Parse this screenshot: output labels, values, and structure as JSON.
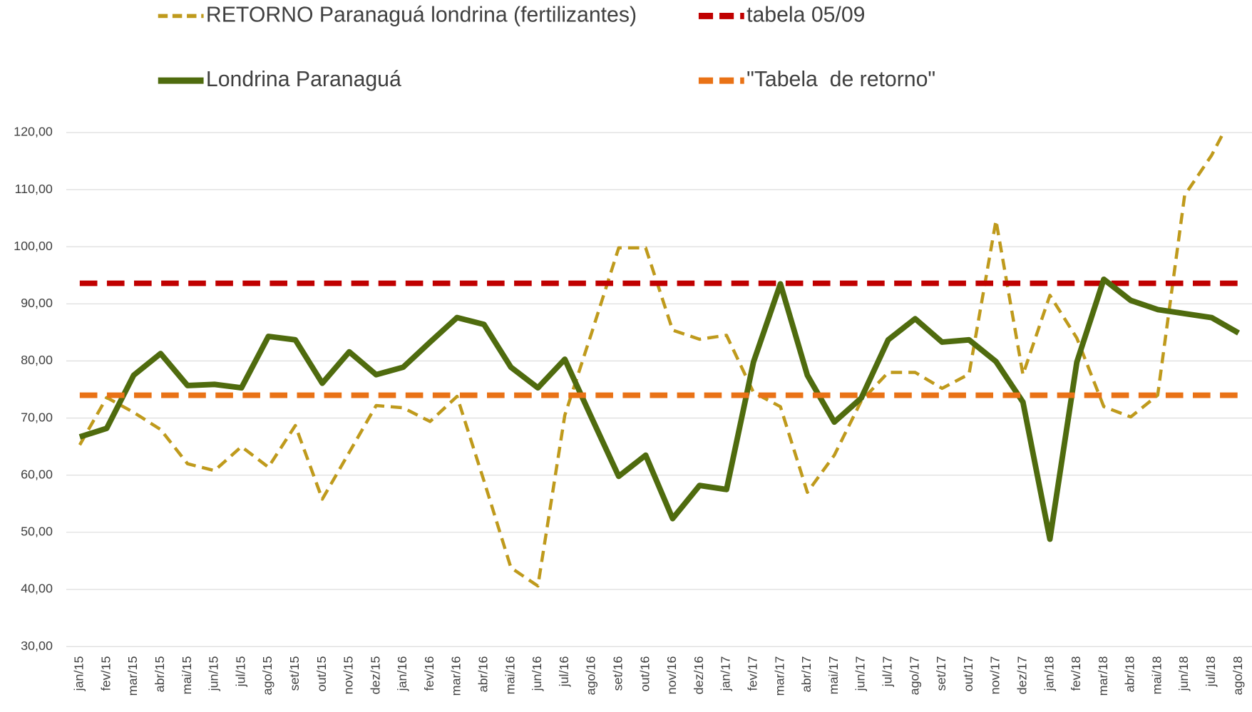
{
  "chart_data": {
    "type": "line",
    "categories": [
      "jan/15",
      "fev/15",
      "mar/15",
      "abr/15",
      "mai/15",
      "jun/15",
      "jul/15",
      "ago/15",
      "set/15",
      "out/15",
      "nov/15",
      "dez/15",
      "jan/16",
      "fev/16",
      "mar/16",
      "abr/16",
      "mai/16",
      "jun/16",
      "jul/16",
      "ago/16",
      "set/16",
      "out/16",
      "nov/16",
      "dez/16",
      "jan/17",
      "fev/17",
      "mar/17",
      "abr/17",
      "mai/17",
      "jun/17",
      "jul/17",
      "ago/17",
      "set/17",
      "out/17",
      "nov/17",
      "dez/17",
      "jan/18",
      "fev/18",
      "mar/18",
      "abr/18",
      "mai/18",
      "jun/18",
      "jul/18",
      "ago/18"
    ],
    "series": [
      {
        "name": "RETORNO Paranaguá londrina (fertilizantes)",
        "color": "#bf9a1c",
        "style": "dashed",
        "values": [
          65.3,
          73.6,
          71,
          68,
          62,
          60.8,
          65,
          61.4,
          68.7,
          55.8,
          64,
          72.2,
          71.8,
          69.4,
          73.8,
          59,
          43.8,
          40.6,
          70.5,
          85,
          99.8,
          99.8,
          85.4,
          83.8,
          84.5,
          74.5,
          72,
          57,
          63.5,
          73,
          78,
          78,
          75.2,
          77.7,
          104.6,
          77.6,
          91.5,
          84,
          72,
          70.2,
          74,
          109,
          116,
          125
        ]
      },
      {
        "name": "tabela 05/09",
        "color": "#c00000",
        "style": "dashed",
        "values": [
          93.6,
          93.6,
          93.6,
          93.6,
          93.6,
          93.6,
          93.6,
          93.6,
          93.6,
          93.6,
          93.6,
          93.6,
          93.6,
          93.6,
          93.6,
          93.6,
          93.6,
          93.6,
          93.6,
          93.6,
          93.6,
          93.6,
          93.6,
          93.6,
          93.6,
          93.6,
          93.6,
          93.6,
          93.6,
          93.6,
          93.6,
          93.6,
          93.6,
          93.6,
          93.6,
          93.6,
          93.6,
          93.6,
          93.6,
          93.6,
          93.6,
          93.6,
          93.6,
          93.6
        ]
      },
      {
        "name": "Londrina Paranaguá",
        "color": "#4f6b0e",
        "style": "solid",
        "values": [
          66.7,
          68.2,
          77.5,
          81.3,
          75.7,
          75.9,
          75.3,
          84.3,
          83.7,
          76.1,
          81.6,
          77.6,
          78.9,
          83.3,
          87.6,
          86.4,
          78.9,
          75.3,
          80.3,
          70,
          59.8,
          63.5,
          52.4,
          58.2,
          57.5,
          79.8,
          93.5,
          77.5,
          69.3,
          73.5,
          83.7,
          87.4,
          83.3,
          83.7,
          79.9,
          72.8,
          48.8,
          79.8,
          94.3,
          90.6,
          89,
          88.3,
          87.6,
          84.9
        ]
      },
      {
        "name": "\"Tabela  de retorno\"",
        "color": "#e97216",
        "style": "dashed",
        "values": [
          74,
          74,
          74,
          74,
          74,
          74,
          74,
          74,
          74,
          74,
          74,
          74,
          74,
          74,
          74,
          74,
          74,
          74,
          74,
          74,
          74,
          74,
          74,
          74,
          74,
          74,
          74,
          74,
          74,
          74,
          74,
          74,
          74,
          74,
          74,
          74,
          74,
          74,
          74,
          74,
          74,
          74,
          74,
          74
        ]
      }
    ],
    "ylim": [
      30,
      120
    ],
    "yticks": [
      {
        "value": 30,
        "label": "30,00"
      },
      {
        "value": 40,
        "label": "40,00"
      },
      {
        "value": 50,
        "label": "50,00"
      },
      {
        "value": 60,
        "label": "60,00"
      },
      {
        "value": 70,
        "label": "70,00"
      },
      {
        "value": 80,
        "label": "80,00"
      },
      {
        "value": 90,
        "label": "90,00"
      },
      {
        "value": 100,
        "label": "100,00"
      },
      {
        "value": 110,
        "label": "110,00"
      },
      {
        "value": 120,
        "label": "120,00"
      }
    ],
    "grid": true,
    "legend": "top"
  }
}
